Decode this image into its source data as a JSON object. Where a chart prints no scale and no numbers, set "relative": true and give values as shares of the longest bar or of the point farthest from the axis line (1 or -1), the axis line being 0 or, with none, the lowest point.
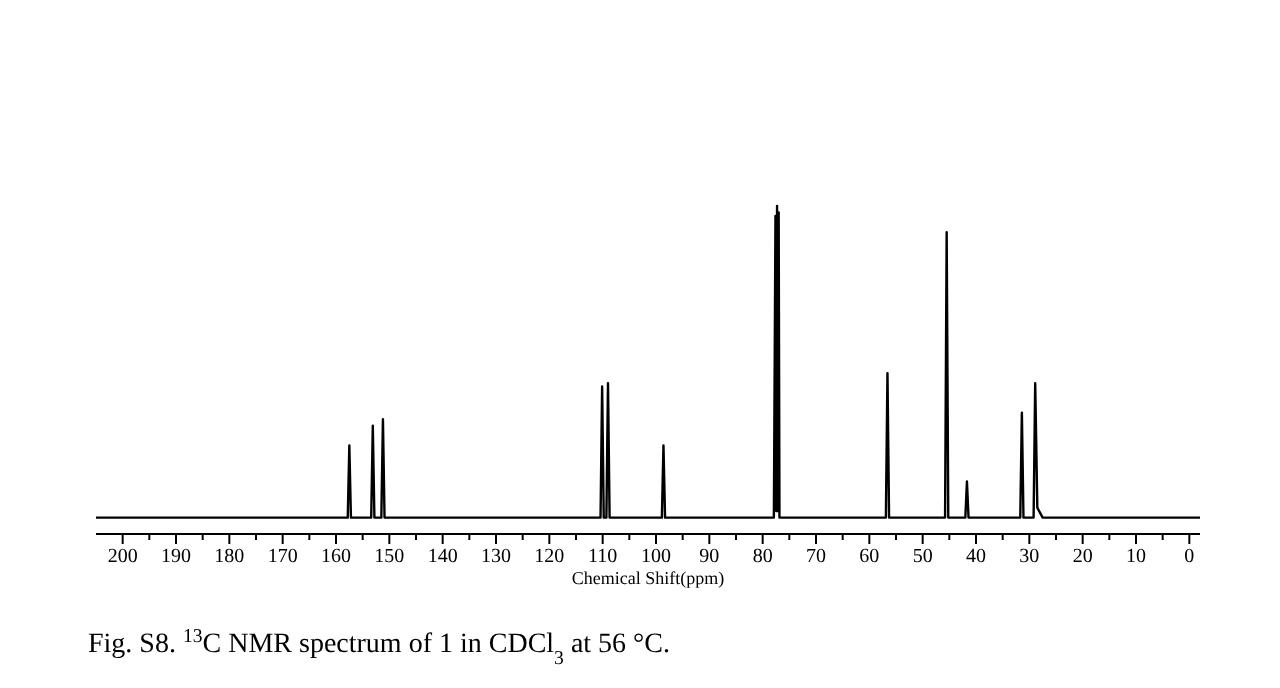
{
  "chart_data": {
    "type": "line",
    "relative": true,
    "xlabel": "Chemical Shift(ppm)",
    "annotations": [
      "Fig. S8. $^{13}$C NMR spectrum of 1 in CDCl$_{3}$ at 56 °C."
    ],
    "xlim": [
      205,
      -2
    ],
    "xticks": [
      200,
      {
        "value": 195,
        "label": null
      },
      190,
      {
        "value": 185,
        "label": null
      },
      180,
      {
        "value": 175,
        "label": null
      },
      170,
      {
        "value": 165,
        "label": null
      },
      160,
      {
        "value": 155,
        "label": null
      },
      150,
      {
        "value": 145,
        "label": null
      },
      140,
      {
        "value": 135,
        "label": null
      },
      130,
      {
        "value": 125,
        "label": null
      },
      120,
      {
        "value": 115,
        "label": null
      },
      110,
      {
        "value": 105,
        "label": null
      },
      100,
      {
        "value": 95,
        "label": null
      },
      90,
      {
        "value": 85,
        "label": null
      },
      80,
      {
        "value": 75,
        "label": null
      },
      70,
      {
        "value": 65,
        "label": null
      },
      60,
      {
        "value": 55,
        "label": null
      },
      50,
      {
        "value": 45,
        "label": null
      },
      40,
      {
        "value": 35,
        "label": null
      },
      30,
      {
        "value": 25,
        "label": null
      },
      20,
      {
        "value": 15,
        "label": null
      },
      10,
      {
        "value": 5,
        "label": null
      },
      0
    ],
    "grid": false,
    "marker": "none",
    "line_style": "solid",
    "series": [
      {
        "color": "#000000",
        "x": [
          205,
          157.8,
          157.5,
          157.2,
          153.4,
          153.1,
          152.8,
          151.5,
          151.2,
          150.9,
          110.4,
          110.1,
          109.8,
          109.3,
          109.0,
          108.7,
          98.9,
          98.6,
          98.3,
          77.9,
          77.6,
          77.45,
          77.3,
          77.15,
          77.0,
          76.85,
          76.7,
          56.9,
          56.6,
          56.3,
          45.8,
          45.5,
          45.2,
          42.0,
          41.7,
          41.4,
          31.7,
          31.4,
          31.1,
          29.2,
          28.9,
          28.5,
          27.5,
          -2
        ],
        "values": [
          0.05,
          0.05,
          0.27,
          0.05,
          0.05,
          0.33,
          0.05,
          0.05,
          0.35,
          0.05,
          0.05,
          0.45,
          0.05,
          0.05,
          0.46,
          0.05,
          0.05,
          0.27,
          0.05,
          0.05,
          0.97,
          0.07,
          1.0,
          0.07,
          0.98,
          0.05,
          0.05,
          0.05,
          0.49,
          0.05,
          0.05,
          0.92,
          0.05,
          0.05,
          0.16,
          0.05,
          0.05,
          0.37,
          0.05,
          0.05,
          0.46,
          0.08,
          0.05,
          0.05
        ]
      }
    ]
  }
}
